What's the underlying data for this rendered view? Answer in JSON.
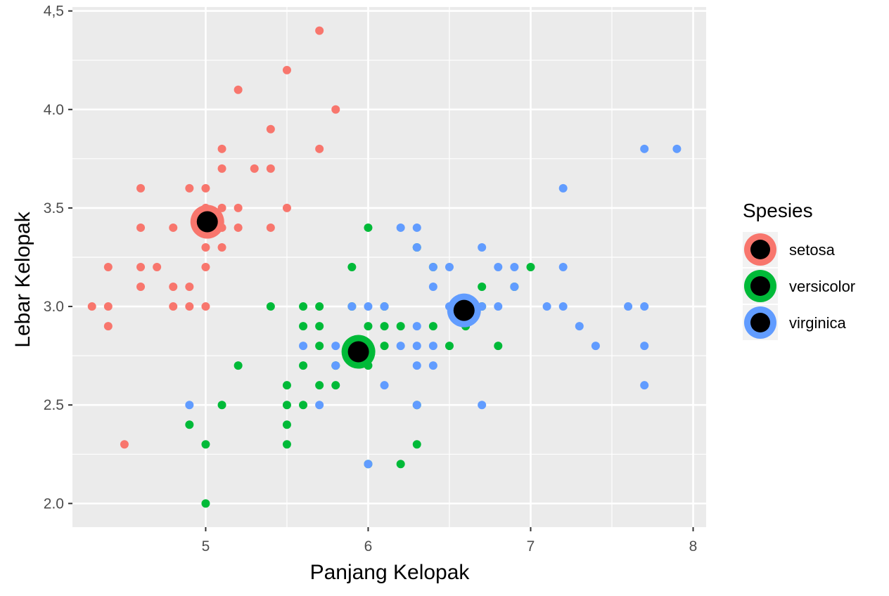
{
  "chart_data": {
    "type": "scatter",
    "xlabel": "Panjang Kelopak",
    "ylabel": "Lebar Kelopak",
    "xlim": [
      4.18,
      8.08
    ],
    "ylim": [
      1.88,
      4.52
    ],
    "x_ticks": [
      5,
      6,
      7,
      8
    ],
    "x_tick_labels": [
      "5",
      "6",
      "7",
      "8"
    ],
    "y_ticks": [
      2.0,
      2.5,
      3.0,
      3.5,
      4.0,
      4.5
    ],
    "y_tick_labels": [
      "2.0",
      "2.5",
      "3.0",
      "3.5",
      "4.0",
      "4,5"
    ],
    "grid": true,
    "legend": {
      "title": "Spesies",
      "position": "right"
    },
    "series": [
      {
        "name": "setosa",
        "color": "#F8766D",
        "centroid": [
          5.01,
          3.43
        ],
        "points": [
          [
            4.3,
            3.0
          ],
          [
            4.4,
            3.2
          ],
          [
            4.4,
            3.0
          ],
          [
            4.4,
            2.9
          ],
          [
            4.5,
            2.3
          ],
          [
            4.6,
            3.6
          ],
          [
            4.6,
            3.4
          ],
          [
            4.6,
            3.2
          ],
          [
            4.6,
            3.1
          ],
          [
            4.7,
            3.2
          ],
          [
            4.8,
            3.4
          ],
          [
            4.8,
            3.1
          ],
          [
            4.8,
            3.0
          ],
          [
            4.9,
            3.6
          ],
          [
            4.9,
            3.1
          ],
          [
            4.9,
            3.0
          ],
          [
            5.0,
            3.6
          ],
          [
            5.0,
            3.5
          ],
          [
            5.0,
            3.4
          ],
          [
            5.0,
            3.3
          ],
          [
            5.0,
            3.2
          ],
          [
            5.0,
            3.0
          ],
          [
            5.1,
            3.8
          ],
          [
            5.1,
            3.7
          ],
          [
            5.1,
            3.5
          ],
          [
            5.1,
            3.4
          ],
          [
            5.1,
            3.3
          ],
          [
            5.2,
            4.1
          ],
          [
            5.2,
            3.5
          ],
          [
            5.2,
            3.4
          ],
          [
            5.3,
            3.7
          ],
          [
            5.4,
            3.9
          ],
          [
            5.4,
            3.7
          ],
          [
            5.4,
            3.4
          ],
          [
            5.5,
            4.2
          ],
          [
            5.5,
            3.5
          ],
          [
            5.7,
            4.4
          ],
          [
            5.7,
            3.8
          ],
          [
            5.8,
            4.0
          ]
        ]
      },
      {
        "name": "versicolor",
        "color": "#00BA38",
        "centroid": [
          5.94,
          2.77
        ],
        "points": [
          [
            4.9,
            2.4
          ],
          [
            5.0,
            2.3
          ],
          [
            5.0,
            2.0
          ],
          [
            5.1,
            2.5
          ],
          [
            5.2,
            2.7
          ],
          [
            5.4,
            3.0
          ],
          [
            5.5,
            2.6
          ],
          [
            5.5,
            2.5
          ],
          [
            5.5,
            2.4
          ],
          [
            5.5,
            2.3
          ],
          [
            5.6,
            3.0
          ],
          [
            5.6,
            2.9
          ],
          [
            5.6,
            2.7
          ],
          [
            5.6,
            2.5
          ],
          [
            5.7,
            3.0
          ],
          [
            5.7,
            2.9
          ],
          [
            5.7,
            2.8
          ],
          [
            5.7,
            2.6
          ],
          [
            5.8,
            2.7
          ],
          [
            5.8,
            2.6
          ],
          [
            5.9,
            3.2
          ],
          [
            5.9,
            3.0
          ],
          [
            6.0,
            3.4
          ],
          [
            6.0,
            2.9
          ],
          [
            6.0,
            2.7
          ],
          [
            6.0,
            2.2
          ],
          [
            6.1,
            3.0
          ],
          [
            6.1,
            2.9
          ],
          [
            6.1,
            2.8
          ],
          [
            6.2,
            2.9
          ],
          [
            6.2,
            2.2
          ],
          [
            6.3,
            3.3
          ],
          [
            6.3,
            2.5
          ],
          [
            6.3,
            2.3
          ],
          [
            6.4,
            3.2
          ],
          [
            6.4,
            2.9
          ],
          [
            6.5,
            2.8
          ],
          [
            6.6,
            3.0
          ],
          [
            6.6,
            2.9
          ],
          [
            6.7,
            3.1
          ],
          [
            6.7,
            3.0
          ],
          [
            6.8,
            2.8
          ],
          [
            6.9,
            3.1
          ],
          [
            7.0,
            3.2
          ]
        ]
      },
      {
        "name": "virginica",
        "color": "#619CFF",
        "centroid": [
          6.59,
          2.98
        ],
        "points": [
          [
            4.9,
            2.5
          ],
          [
            5.6,
            2.8
          ],
          [
            5.7,
            2.5
          ],
          [
            5.8,
            2.8
          ],
          [
            5.8,
            2.7
          ],
          [
            5.9,
            3.0
          ],
          [
            6.0,
            3.0
          ],
          [
            6.0,
            2.2
          ],
          [
            6.1,
            3.0
          ],
          [
            6.1,
            2.6
          ],
          [
            6.2,
            3.4
          ],
          [
            6.2,
            2.8
          ],
          [
            6.3,
            3.4
          ],
          [
            6.3,
            3.3
          ],
          [
            6.3,
            2.9
          ],
          [
            6.3,
            2.8
          ],
          [
            6.3,
            2.7
          ],
          [
            6.3,
            2.5
          ],
          [
            6.4,
            3.2
          ],
          [
            6.4,
            3.1
          ],
          [
            6.4,
            2.8
          ],
          [
            6.4,
            2.7
          ],
          [
            6.5,
            3.2
          ],
          [
            6.5,
            3.0
          ],
          [
            6.7,
            3.3
          ],
          [
            6.7,
            3.0
          ],
          [
            6.7,
            2.5
          ],
          [
            6.8,
            3.2
          ],
          [
            6.8,
            3.0
          ],
          [
            6.9,
            3.2
          ],
          [
            6.9,
            3.1
          ],
          [
            7.1,
            3.0
          ],
          [
            7.2,
            3.6
          ],
          [
            7.2,
            3.2
          ],
          [
            7.2,
            3.0
          ],
          [
            7.3,
            2.9
          ],
          [
            7.4,
            2.8
          ],
          [
            7.6,
            3.0
          ],
          [
            7.7,
            3.8
          ],
          [
            7.7,
            3.0
          ],
          [
            7.7,
            2.8
          ],
          [
            7.7,
            2.6
          ],
          [
            7.9,
            3.8
          ]
        ]
      }
    ]
  }
}
